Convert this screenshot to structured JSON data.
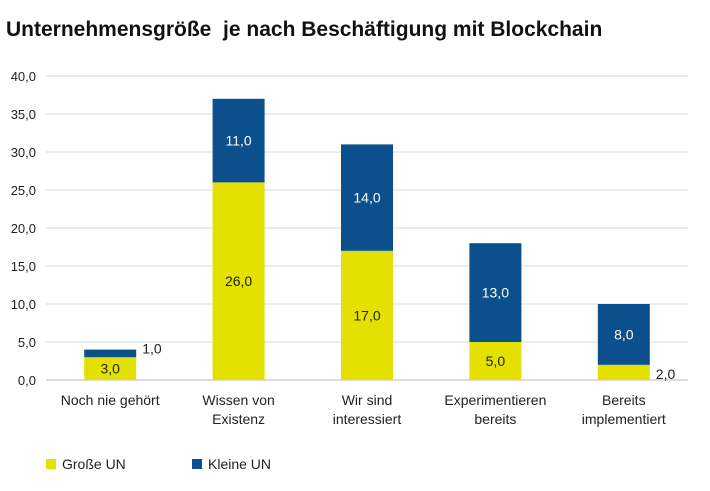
{
  "chart_data": {
    "type": "bar",
    "stacked": true,
    "title": "Unternehmensgröße  je nach Beschäftigung mit Blockchain",
    "categories": [
      [
        "Noch nie gehört"
      ],
      [
        "Wissen von",
        "Existenz"
      ],
      [
        "Wir sind",
        "interessiert"
      ],
      [
        "Experimentieren",
        "bereits"
      ],
      [
        "Bereits",
        "implementiert"
      ]
    ],
    "series": [
      {
        "name": "Große UN",
        "color": "#e4e100",
        "values": [
          3.0,
          26.0,
          17.0,
          5.0,
          2.0
        ],
        "labels": [
          "3,0",
          "26,0",
          "17,0",
          "5,0",
          "2,0"
        ]
      },
      {
        "name": "Kleine UN",
        "color": "#0b4f8c",
        "values": [
          1.0,
          11.0,
          14.0,
          13.0,
          8.0
        ],
        "labels": [
          "1,0",
          "11,0",
          "14,0",
          "13,0",
          "8,0"
        ]
      }
    ],
    "ylim": [
      0,
      40
    ],
    "y_ticks": [
      "0,0",
      "5,0",
      "10,0",
      "15,0",
      "20,0",
      "25,0",
      "30,0",
      "35,0",
      "40,0"
    ],
    "grid": true,
    "legend_position": "bottom-left"
  }
}
